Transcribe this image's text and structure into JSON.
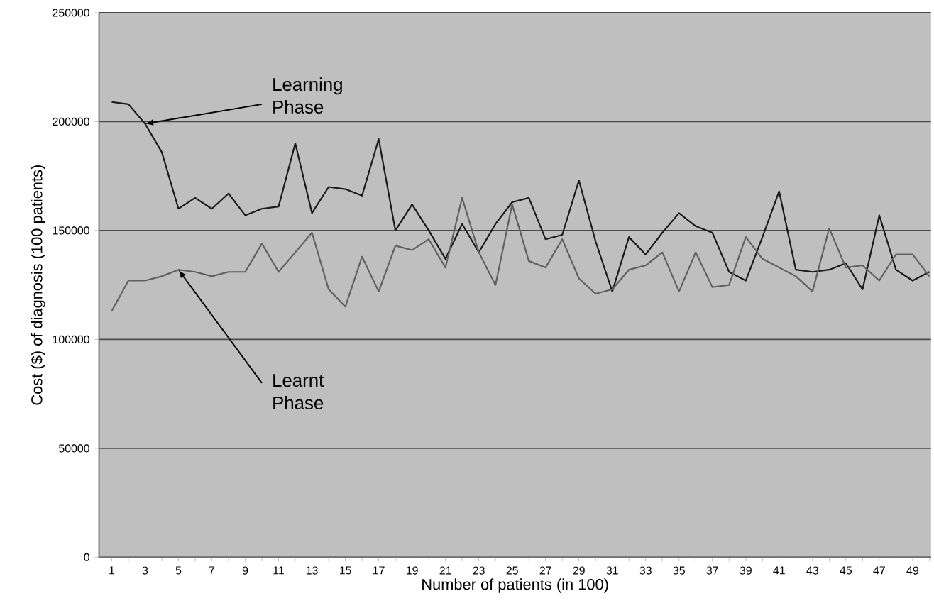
{
  "chart_data": {
    "type": "line",
    "xlabel": "Number of patients (in 100)",
    "ylabel": "Cost ($) of diagnosis (100 patients)",
    "categories": [
      "1",
      null,
      "3",
      null,
      "5",
      null,
      "7",
      null,
      "9",
      null,
      "11",
      null,
      "13",
      null,
      "15",
      null,
      "17",
      null,
      "19",
      null,
      "21",
      null,
      "23",
      null,
      "25",
      null,
      "27",
      null,
      "29",
      null,
      "31",
      null,
      "33",
      null,
      "35",
      null,
      "37",
      null,
      "39",
      null,
      "41",
      null,
      "43",
      null,
      "45",
      null,
      "47",
      null,
      "49",
      null
    ],
    "series": [
      {
        "color": "#1a1a1a",
        "values": [
          209000,
          208000,
          199000,
          186000,
          160000,
          165000,
          160000,
          167000,
          157000,
          160000,
          161000,
          190000,
          158000,
          170000,
          169000,
          166000,
          192000,
          150000,
          162000,
          150000,
          137000,
          153000,
          140000,
          153000,
          163000,
          165000,
          146000,
          148000,
          173000,
          145000,
          122000,
          147000,
          139000,
          149000,
          158000,
          152000,
          149000,
          131000,
          127000,
          147000,
          168000,
          132000,
          131000,
          132000,
          135000,
          123000,
          157000,
          132000,
          127000,
          131000
        ]
      },
      {
        "color": "#606060",
        "values": [
          113000,
          127000,
          127000,
          129000,
          132000,
          131000,
          129000,
          131000,
          131000,
          144000,
          131000,
          140000,
          149000,
          123000,
          115000,
          138000,
          122000,
          143000,
          141000,
          146000,
          133000,
          165000,
          140000,
          125000,
          162000,
          136000,
          133000,
          146000,
          128000,
          121000,
          123000,
          132000,
          134000,
          140000,
          122000,
          140000,
          124000,
          125000,
          147000,
          137000,
          133000,
          129000,
          122000,
          151000,
          133000,
          134000,
          127000,
          139000,
          139000,
          129000
        ]
      }
    ],
    "ylim": [
      0,
      250000
    ],
    "yticks": [
      0,
      50000,
      100000,
      150000,
      200000,
      250000
    ],
    "grid": "y",
    "marker": "none",
    "line_style": "solid",
    "annotations": [
      {
        "text": "Learning Phase",
        "x": "3",
        "y": 199000
      },
      {
        "text": "Learnt Phase",
        "x": "5",
        "y": 132000
      }
    ]
  }
}
